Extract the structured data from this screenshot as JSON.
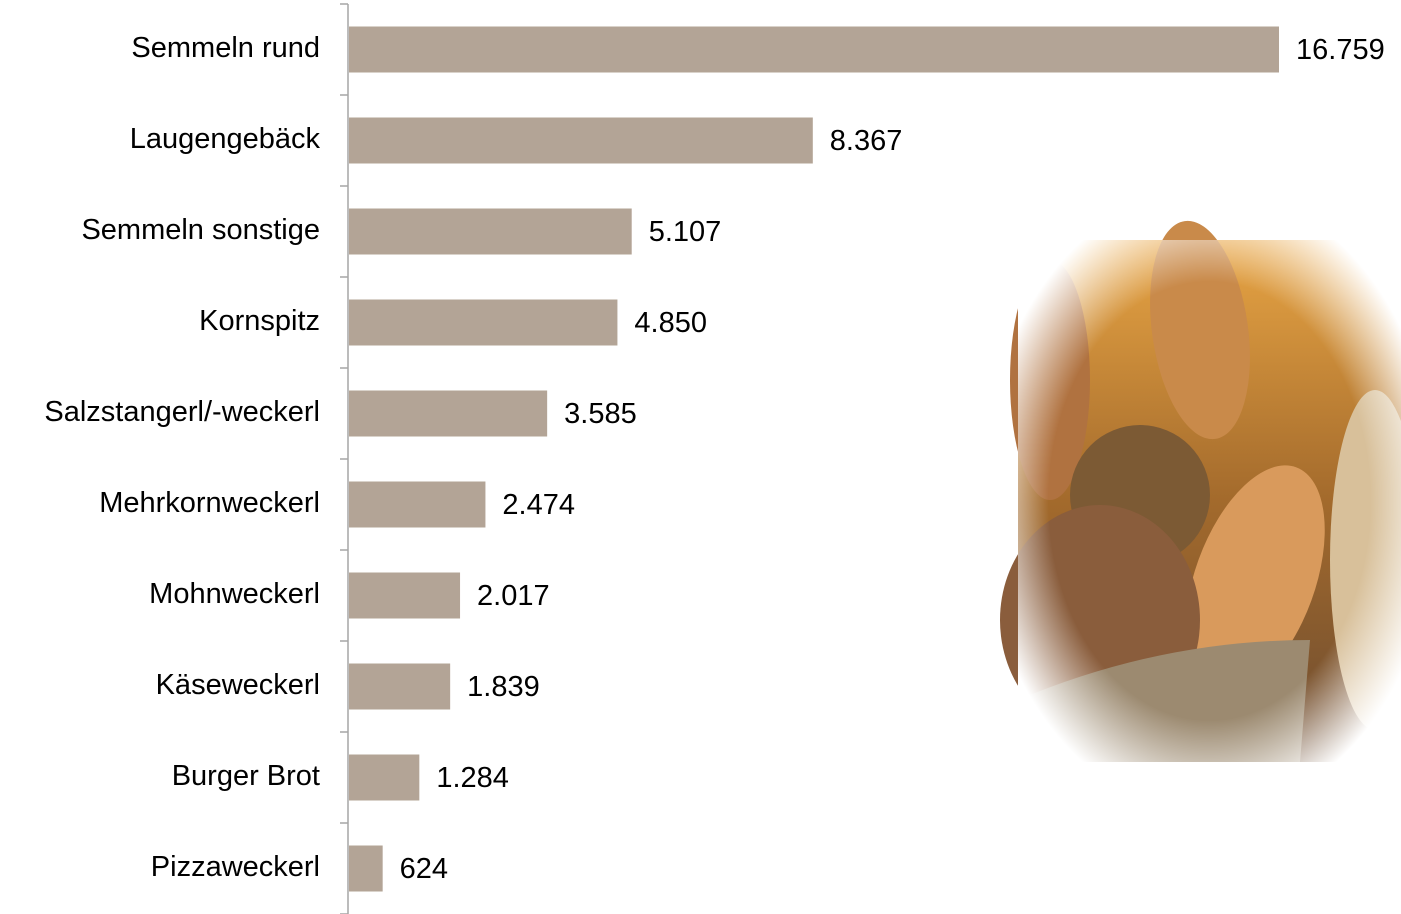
{
  "chart_data": {
    "type": "bar",
    "orientation": "horizontal",
    "categories": [
      "Semmeln rund",
      "Laugengebäck",
      "Semmeln sonstige",
      "Kornspitz",
      "Salzstangerl/-weckerl",
      "Mehrkornweckerl",
      "Mohnweckerl",
      "Käseweckerl",
      "Burger Brot",
      "Pizzaweckerl"
    ],
    "values": [
      16759,
      8367,
      5107,
      4850,
      3585,
      2474,
      2017,
      1839,
      1284,
      624
    ],
    "value_labels": [
      "16.759",
      "8.367",
      "5.107",
      "4.850",
      "3.585",
      "2.474",
      "2.017",
      "1.839",
      "1.284",
      "624"
    ],
    "color": "#b3a496"
  }
}
